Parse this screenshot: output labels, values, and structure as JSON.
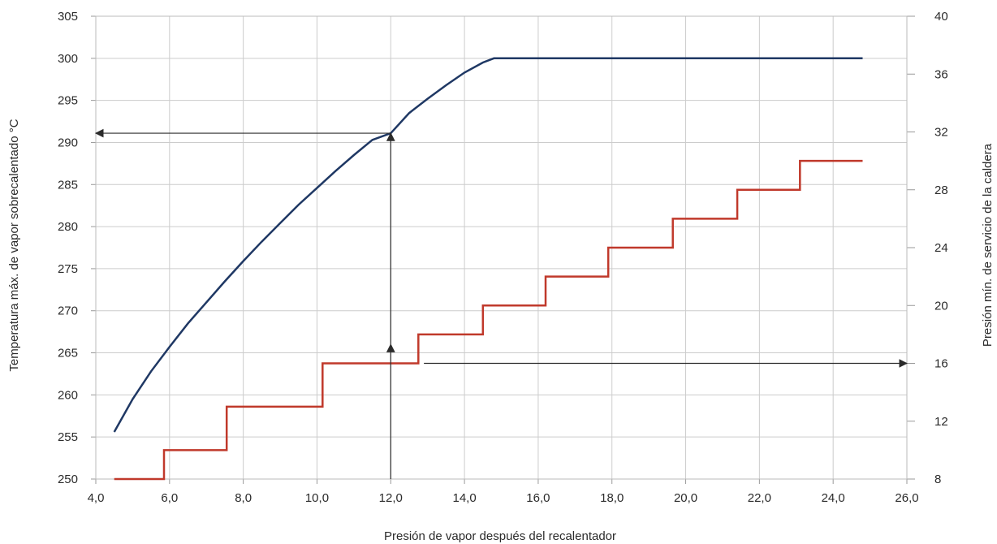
{
  "chart_data": {
    "type": "line",
    "title": "",
    "xlabel": "Presión de vapor después del recalentador",
    "ylabel_left": "Temperatura máx. de vapor sobrecalentado °C",
    "ylabel_right": "Presión mín. de servicio de la caldera",
    "xlim": [
      4,
      26
    ],
    "ylim_left": [
      250,
      305
    ],
    "ylim_right": [
      8,
      40
    ],
    "grid": true,
    "x_ticks": [
      "4,0",
      "6,0",
      "8,0",
      "10,0",
      "12,0",
      "14,0",
      "16,0",
      "18,0",
      "20,0",
      "22,0",
      "24,0",
      "26,0"
    ],
    "y_left_ticks": [
      "250",
      "255",
      "260",
      "265",
      "270",
      "275",
      "280",
      "285",
      "290",
      "295",
      "300",
      "305"
    ],
    "y_right_ticks": [
      "8",
      "12",
      "16",
      "20",
      "24",
      "28",
      "32",
      "36",
      "40"
    ],
    "series": [
      {
        "axis": "left",
        "color": "#1f3864",
        "x": [
          4.5,
          5.0,
          5.5,
          6.0,
          6.5,
          7.0,
          7.5,
          8.0,
          8.5,
          9.0,
          9.5,
          10.0,
          10.5,
          11.0,
          11.5,
          12.0,
          12.5,
          13.0,
          13.5,
          14.0,
          14.5,
          14.8,
          24.8
        ],
        "y": [
          255.6,
          259.5,
          262.8,
          265.7,
          268.5,
          271.0,
          273.5,
          275.9,
          278.2,
          280.4,
          282.6,
          284.6,
          286.6,
          288.5,
          290.3,
          291.1,
          293.5,
          295.2,
          296.8,
          298.3,
          299.5,
          300.0,
          300.0
        ]
      },
      {
        "axis": "right",
        "color": "#c0392b",
        "step": true,
        "x": [
          4.5,
          5.85,
          5.85,
          7.55,
          7.55,
          10.15,
          10.15,
          12.75,
          12.75,
          14.5,
          14.5,
          16.2,
          16.2,
          17.9,
          17.9,
          19.65,
          19.65,
          21.4,
          21.4,
          23.1,
          23.1,
          24.8
        ],
        "y": [
          8,
          8,
          10,
          10,
          13,
          13,
          16,
          16,
          18,
          18,
          20,
          20,
          22,
          22,
          24,
          24,
          26,
          26,
          28,
          28,
          30,
          30
        ]
      }
    ],
    "annotations": [
      {
        "type": "arrow",
        "from": [
          12,
          250
        ],
        "to": [
          12,
          266
        ],
        "axis": "left"
      },
      {
        "type": "arrow",
        "from": [
          12,
          291.1
        ],
        "to": [
          4,
          291.1
        ],
        "axis": "left"
      },
      {
        "type": "arrow",
        "from": [
          12,
          266
        ],
        "to": [
          12,
          291.1
        ],
        "axis": "left"
      },
      {
        "type": "arrow",
        "from": [
          12.9,
          16
        ],
        "to": [
          26,
          16
        ],
        "axis": "right"
      }
    ]
  }
}
